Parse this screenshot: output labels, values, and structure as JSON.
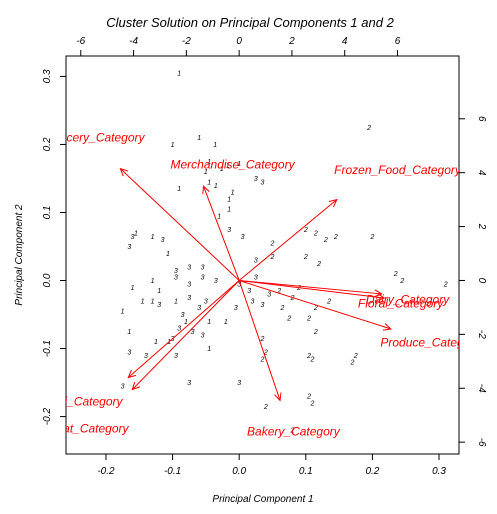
{
  "chart_data": {
    "type": "scatter",
    "title": "Cluster Solution on Principal Components 1 and 2",
    "xlabel": "Principal Component 1",
    "ylabel": "Principal Component 2",
    "xlim": [
      -0.26,
      0.33
    ],
    "ylim": [
      -0.255,
      0.33
    ],
    "x_ticks": [
      -0.2,
      -0.1,
      0.0,
      0.1,
      0.2,
      0.3
    ],
    "x_tick_labels": [
      "-0.2",
      "-0.1",
      "0.0",
      "0.1",
      "0.2",
      "0.3"
    ],
    "y_ticks": [
      -0.2,
      -0.1,
      0.0,
      0.1,
      0.2,
      0.3
    ],
    "y_tick_labels": [
      "-0.2",
      "-0.1",
      "0.0",
      "0.1",
      "0.2",
      "0.3"
    ],
    "top_axis": {
      "min": -6.56,
      "max": 8.33,
      "ticks": [
        -6,
        -4,
        -2,
        0,
        2,
        4,
        6
      ],
      "tick_labels": [
        "-6",
        "-4",
        "-2",
        "0",
        "2",
        "4",
        "6"
      ]
    },
    "right_axis": {
      "min": -6.44,
      "max": 8.33,
      "ticks": [
        -6,
        -4,
        -2,
        0,
        2,
        4,
        6
      ],
      "tick_labels": [
        "-6",
        "-4",
        "-2",
        "0",
        "2",
        "4",
        "6"
      ]
    },
    "grid": false,
    "points": [
      {
        "x": -0.09,
        "y": 0.305,
        "label": "1"
      },
      {
        "x": -0.1,
        "y": 0.2,
        "label": "1"
      },
      {
        "x": -0.06,
        "y": 0.21,
        "label": "1"
      },
      {
        "x": -0.036,
        "y": 0.2,
        "label": "1"
      },
      {
        "x": -0.045,
        "y": 0.175,
        "label": "1"
      },
      {
        "x": -0.05,
        "y": 0.16,
        "label": "1"
      },
      {
        "x": -0.026,
        "y": 0.165,
        "label": "1"
      },
      {
        "x": -0.017,
        "y": 0.17,
        "label": "1"
      },
      {
        "x": 0.0,
        "y": 0.172,
        "label": "1"
      },
      {
        "x": -0.045,
        "y": 0.145,
        "label": "1"
      },
      {
        "x": -0.035,
        "y": 0.14,
        "label": "1"
      },
      {
        "x": -0.09,
        "y": 0.135,
        "label": "1"
      },
      {
        "x": -0.03,
        "y": 0.095,
        "label": "1"
      },
      {
        "x": -0.015,
        "y": 0.105,
        "label": "1"
      },
      {
        "x": -0.015,
        "y": 0.12,
        "label": "1"
      },
      {
        "x": -0.01,
        "y": 0.13,
        "label": "1"
      },
      {
        "x": -0.155,
        "y": 0.07,
        "label": "1"
      },
      {
        "x": -0.13,
        "y": 0.065,
        "label": "1"
      },
      {
        "x": -0.107,
        "y": 0.04,
        "label": "1"
      },
      {
        "x": -0.12,
        "y": -0.015,
        "label": "1"
      },
      {
        "x": -0.13,
        "y": -0.03,
        "label": "1"
      },
      {
        "x": -0.145,
        "y": -0.03,
        "label": "1"
      },
      {
        "x": -0.16,
        "y": -0.01,
        "label": "1"
      },
      {
        "x": -0.175,
        "y": -0.045,
        "label": "1"
      },
      {
        "x": -0.165,
        "y": -0.075,
        "label": "1"
      },
      {
        "x": -0.095,
        "y": -0.03,
        "label": "1"
      },
      {
        "x": -0.08,
        "y": -0.06,
        "label": "1"
      },
      {
        "x": -0.045,
        "y": -0.06,
        "label": "1"
      },
      {
        "x": -0.02,
        "y": -0.06,
        "label": "1"
      },
      {
        "x": -0.045,
        "y": -0.1,
        "label": "1"
      },
      {
        "x": -0.105,
        "y": -0.09,
        "label": "1"
      },
      {
        "x": -0.125,
        "y": -0.09,
        "label": "1"
      },
      {
        "x": -0.13,
        "y": 0.0,
        "label": "1"
      },
      {
        "x": -0.165,
        "y": 0.05,
        "label": "3"
      },
      {
        "x": -0.115,
        "y": 0.06,
        "label": "3"
      },
      {
        "x": -0.095,
        "y": 0.015,
        "label": "3"
      },
      {
        "x": -0.075,
        "y": 0.02,
        "label": "3"
      },
      {
        "x": -0.055,
        "y": 0.02,
        "label": "3"
      },
      {
        "x": -0.055,
        "y": 0.005,
        "label": "3"
      },
      {
        "x": -0.095,
        "y": 0.005,
        "label": "3"
      },
      {
        "x": -0.075,
        "y": -0.005,
        "label": "3"
      },
      {
        "x": -0.035,
        "y": 0.0,
        "label": "3"
      },
      {
        "x": -0.075,
        "y": -0.025,
        "label": "3"
      },
      {
        "x": -0.06,
        "y": -0.04,
        "label": "3"
      },
      {
        "x": -0.05,
        "y": -0.03,
        "label": "3"
      },
      {
        "x": -0.005,
        "y": -0.04,
        "label": "3"
      },
      {
        "x": 0.02,
        "y": -0.03,
        "label": "3"
      },
      {
        "x": -0.085,
        "y": -0.05,
        "label": "3"
      },
      {
        "x": -0.09,
        "y": -0.07,
        "label": "3"
      },
      {
        "x": -0.1,
        "y": -0.085,
        "label": "3"
      },
      {
        "x": -0.095,
        "y": -0.11,
        "label": "3"
      },
      {
        "x": -0.14,
        "y": -0.11,
        "label": "3"
      },
      {
        "x": -0.07,
        "y": -0.075,
        "label": "3"
      },
      {
        "x": -0.055,
        "y": -0.08,
        "label": "3"
      },
      {
        "x": -0.12,
        "y": -0.035,
        "label": "3"
      },
      {
        "x": -0.075,
        "y": -0.15,
        "label": "3"
      },
      {
        "x": 0.0,
        "y": -0.15,
        "label": "3"
      },
      {
        "x": 0.035,
        "y": 0.145,
        "label": "3"
      },
      {
        "x": 0.025,
        "y": 0.15,
        "label": "3"
      },
      {
        "x": -0.015,
        "y": 0.075,
        "label": "3"
      },
      {
        "x": 0.005,
        "y": 0.065,
        "label": "3"
      },
      {
        "x": 0.025,
        "y": 0.03,
        "label": "3"
      },
      {
        "x": 0.025,
        "y": 0.005,
        "label": "3"
      },
      {
        "x": 0.015,
        "y": -0.015,
        "label": "3"
      },
      {
        "x": 0.045,
        "y": -0.02,
        "label": "3"
      },
      {
        "x": -0.16,
        "y": 0.065,
        "label": "3"
      },
      {
        "x": -0.165,
        "y": -0.105,
        "label": "3"
      },
      {
        "x": -0.175,
        "y": -0.155,
        "label": "3"
      },
      {
        "x": 0.0,
        "y": -0.005,
        "label": "3"
      },
      {
        "x": 0.035,
        "y": -0.035,
        "label": "3"
      },
      {
        "x": 0.195,
        "y": 0.225,
        "label": "2"
      },
      {
        "x": 0.1,
        "y": 0.075,
        "label": "2"
      },
      {
        "x": 0.115,
        "y": 0.07,
        "label": "2"
      },
      {
        "x": 0.13,
        "y": 0.06,
        "label": "2"
      },
      {
        "x": 0.145,
        "y": 0.065,
        "label": "2"
      },
      {
        "x": 0.2,
        "y": 0.065,
        "label": "2"
      },
      {
        "x": 0.05,
        "y": 0.055,
        "label": "2"
      },
      {
        "x": 0.05,
        "y": 0.035,
        "label": "2"
      },
      {
        "x": 0.1,
        "y": 0.035,
        "label": "2"
      },
      {
        "x": 0.12,
        "y": 0.025,
        "label": "2"
      },
      {
        "x": 0.235,
        "y": 0.01,
        "label": "2"
      },
      {
        "x": 0.245,
        "y": 0.0,
        "label": "2"
      },
      {
        "x": 0.31,
        "y": -0.005,
        "label": "2"
      },
      {
        "x": 0.09,
        "y": -0.01,
        "label": "2"
      },
      {
        "x": 0.06,
        "y": -0.015,
        "label": "2"
      },
      {
        "x": 0.08,
        "y": -0.025,
        "label": "2"
      },
      {
        "x": 0.065,
        "y": -0.04,
        "label": "2"
      },
      {
        "x": 0.115,
        "y": -0.04,
        "label": "2"
      },
      {
        "x": 0.135,
        "y": -0.03,
        "label": "2"
      },
      {
        "x": 0.075,
        "y": -0.055,
        "label": "2"
      },
      {
        "x": 0.105,
        "y": -0.055,
        "label": "2"
      },
      {
        "x": 0.115,
        "y": -0.075,
        "label": "2"
      },
      {
        "x": 0.035,
        "y": -0.085,
        "label": "2"
      },
      {
        "x": 0.04,
        "y": -0.105,
        "label": "2"
      },
      {
        "x": 0.035,
        "y": -0.115,
        "label": "2"
      },
      {
        "x": 0.105,
        "y": -0.11,
        "label": "2"
      },
      {
        "x": 0.11,
        "y": -0.115,
        "label": "2"
      },
      {
        "x": 0.175,
        "y": -0.11,
        "label": "2"
      },
      {
        "x": 0.17,
        "y": -0.12,
        "label": "2"
      },
      {
        "x": 0.105,
        "y": -0.17,
        "label": "2"
      },
      {
        "x": 0.11,
        "y": -0.18,
        "label": "2"
      },
      {
        "x": 0.04,
        "y": -0.185,
        "label": "2"
      },
      {
        "x": 0.08,
        "y": -0.22,
        "label": "2"
      }
    ],
    "loadings": [
      {
        "name": "Grocery_Category",
        "x_end": -4.5,
        "y_end": 4.15,
        "label_x": -7.3,
        "label_y": 5.3
      },
      {
        "name": "Merchandise_Category",
        "x_end": -1.35,
        "y_end": 3.5,
        "label_x": -2.6,
        "label_y": 4.3
      },
      {
        "name": "Frozen_Food_Category",
        "x_end": 3.7,
        "y_end": 3.0,
        "label_x": 3.6,
        "label_y": 4.1
      },
      {
        "name": "Dairy_Category",
        "x_end": 5.4,
        "y_end": -0.5,
        "label_x": 4.8,
        "label_y": -0.7
      },
      {
        "name": "Floral_Category",
        "x_end": 5.5,
        "y_end": -0.65,
        "label_x": 4.5,
        "label_y": -0.85
      },
      {
        "name": "Produce_Category",
        "x_end": 5.75,
        "y_end": -1.8,
        "label_x": 5.35,
        "label_y": -2.3
      },
      {
        "name": "Bakery_Category",
        "x_end": 1.55,
        "y_end": -4.45,
        "label_x": 0.3,
        "label_y": -5.6
      },
      {
        "name": "Deli_Category",
        "x_end": -4.2,
        "y_end": -3.6,
        "label_x": -7.3,
        "label_y": -4.5
      },
      {
        "name": "Meat_Category",
        "x_end": -4.05,
        "y_end": -4.05,
        "label_x": -7.3,
        "label_y": -5.5
      }
    ],
    "axis_label_tops": {
      "top_axis": "Cluster Solution on Principal Components 1 and 2"
    },
    "colors": {
      "arrows": "#ff0000",
      "points": "#000000",
      "axes": "#000000"
    },
    "legend": "none"
  }
}
